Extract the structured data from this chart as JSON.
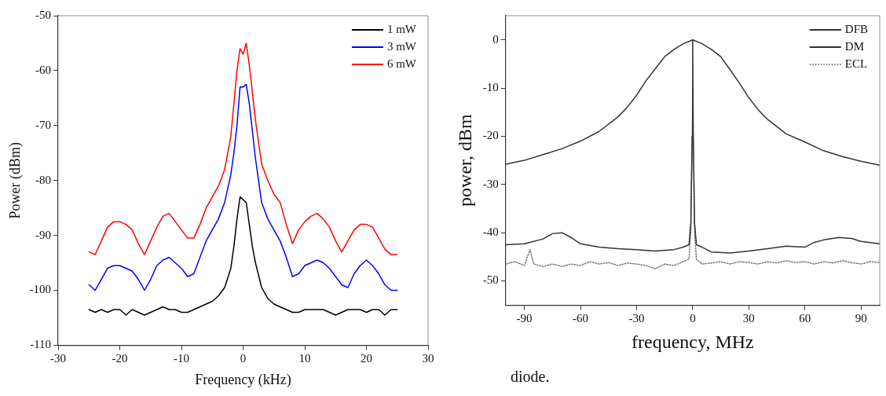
{
  "chart_data": [
    {
      "type": "line",
      "xlabel": "Frequency (kHz)",
      "ylabel": "Power (dBm)",
      "xlim": [
        -30,
        30
      ],
      "xticks": [
        -30,
        -20,
        -10,
        0,
        10,
        20,
        30
      ],
      "ylim": [
        -110,
        -50
      ],
      "yticks": [
        -110,
        -100,
        -90,
        -80,
        -70,
        -60,
        -50
      ],
      "grid": false,
      "legend": "top right",
      "marker": "none",
      "line_style": "solid",
      "series": [
        {
          "name": "1 mW",
          "color": "#000000",
          "x": [
            -25,
            -24,
            -23,
            -22,
            -21,
            -20,
            -19,
            -18,
            -17,
            -16,
            -15,
            -14,
            -13,
            -12,
            -11,
            -10,
            -9,
            -8,
            -7,
            -6,
            -5,
            -4,
            -3,
            -2,
            -1.5,
            -1,
            -0.5,
            0,
            0.5,
            1,
            1.5,
            2,
            3,
            4,
            5,
            6,
            7,
            8,
            9,
            10,
            11,
            12,
            13,
            14,
            15,
            16,
            17,
            18,
            19,
            20,
            21,
            22,
            23,
            24,
            25
          ],
          "values": [
            -103.5,
            -104,
            -103.5,
            -104,
            -103.5,
            -103.5,
            -104.5,
            -103.5,
            -104,
            -104.5,
            -104,
            -103.5,
            -103,
            -103.5,
            -103.5,
            -104,
            -104,
            -103.5,
            -103,
            -102.5,
            -102,
            -101,
            -99.5,
            -96,
            -92,
            -87,
            -83,
            -83.5,
            -84,
            -88,
            -92,
            -95,
            -99.5,
            -101.5,
            -102.5,
            -103,
            -103.5,
            -104,
            -104,
            -103.5,
            -103.5,
            -103.5,
            -103.5,
            -104,
            -104.5,
            -104,
            -103.5,
            -103.5,
            -103.5,
            -104,
            -103.5,
            -103.5,
            -104.5,
            -103.5,
            -103.5
          ]
        },
        {
          "name": "3 mW",
          "color": "#0000ff",
          "x": [
            -25,
            -24,
            -23,
            -22,
            -21,
            -20,
            -19,
            -18,
            -17,
            -16,
            -15,
            -14,
            -13,
            -12,
            -11,
            -10,
            -9,
            -8,
            -7,
            -6,
            -5,
            -4,
            -3,
            -2,
            -1.5,
            -1,
            -0.5,
            0,
            0.5,
            1,
            1.5,
            2,
            3,
            4,
            5,
            6,
            7,
            8,
            9,
            10,
            11,
            12,
            13,
            14,
            15,
            16,
            17,
            18,
            19,
            20,
            21,
            22,
            23,
            24,
            25
          ],
          "values": [
            -99,
            -100,
            -98,
            -96,
            -95.5,
            -95.5,
            -96,
            -96.5,
            -98,
            -100,
            -98,
            -95.5,
            -94.5,
            -94,
            -95,
            -96,
            -97.5,
            -97,
            -94,
            -91,
            -89,
            -87,
            -84,
            -79,
            -75,
            -70,
            -63,
            -63,
            -62.5,
            -66,
            -71,
            -76,
            -84,
            -87,
            -89,
            -91,
            -94,
            -97.5,
            -97,
            -95.5,
            -95,
            -94.5,
            -95,
            -96,
            -97.5,
            -99,
            -99.5,
            -97,
            -95.5,
            -94.5,
            -95.5,
            -97,
            -99,
            -100,
            -100
          ]
        },
        {
          "name": "6 mW",
          "color": "#ff0000",
          "x": [
            -25,
            -24,
            -23,
            -22,
            -21,
            -20,
            -19,
            -18,
            -17,
            -16,
            -15,
            -14,
            -13,
            -12,
            -11,
            -10,
            -9,
            -8,
            -7,
            -6,
            -5,
            -4,
            -3,
            -2,
            -1.5,
            -1,
            -0.5,
            0,
            0.5,
            1,
            1.5,
            2,
            3,
            4,
            5,
            6,
            7,
            8,
            9,
            10,
            11,
            12,
            13,
            14,
            15,
            16,
            17,
            18,
            19,
            20,
            21,
            22,
            23,
            24,
            25
          ],
          "values": [
            -93,
            -93.5,
            -91,
            -88.5,
            -87.5,
            -87.5,
            -88,
            -89,
            -91.5,
            -93.5,
            -91,
            -88.5,
            -86.5,
            -86,
            -87.5,
            -89,
            -90.5,
            -90.5,
            -88,
            -85,
            -83,
            -81,
            -78,
            -72,
            -66,
            -60,
            -56,
            -57,
            -55,
            -59,
            -64,
            -69,
            -77,
            -80,
            -82.5,
            -84,
            -88,
            -91.5,
            -89,
            -87.5,
            -86.5,
            -86,
            -87,
            -88.5,
            -91,
            -93,
            -91,
            -89,
            -88,
            -88,
            -88.5,
            -90.5,
            -92.5,
            -93.5,
            -93.5
          ]
        }
      ]
    },
    {
      "type": "line",
      "xlabel": "frequency, MHz",
      "ylabel": "power, dBm",
      "xlim": [
        -100,
        100
      ],
      "xticks": [
        -90,
        -60,
        -30,
        0,
        30,
        60,
        90
      ],
      "ylim": [
        -55,
        5
      ],
      "yticks": [
        -50,
        -40,
        -30,
        -20,
        -10,
        0
      ],
      "grid": false,
      "legend": "top right",
      "marker": "none",
      "annotations": [
        "diode."
      ],
      "series": [
        {
          "name": "DFB",
          "color": "#333333",
          "line_style": "solid",
          "x": [
            -100,
            -90,
            -80,
            -70,
            -60,
            -50,
            -40,
            -35,
            -30,
            -25,
            -20,
            -15,
            -10,
            -5,
            0,
            5,
            10,
            15,
            20,
            25,
            30,
            35,
            40,
            50,
            60,
            70,
            80,
            90,
            100
          ],
          "values": [
            -25.8,
            -25,
            -23.8,
            -22.6,
            -21,
            -19,
            -16,
            -14,
            -11.5,
            -8.5,
            -6,
            -3.5,
            -2,
            -0.8,
            0,
            -0.8,
            -2,
            -3.5,
            -6.2,
            -9,
            -12,
            -14.5,
            -16.5,
            -19.5,
            -21.2,
            -23,
            -24.2,
            -25.2,
            -26
          ]
        },
        {
          "name": "DM",
          "color": "#333333",
          "line_style": "solid",
          "x": [
            -100,
            -90,
            -80,
            -75,
            -70,
            -65,
            -60,
            -50,
            -40,
            -30,
            -20,
            -10,
            -5,
            -2,
            -1,
            -0.3,
            0,
            0.3,
            1,
            2,
            5,
            10,
            20,
            30,
            40,
            50,
            60,
            65,
            70,
            78,
            85,
            90,
            100
          ],
          "values": [
            -42.5,
            -42.3,
            -41.3,
            -40.2,
            -40,
            -41,
            -42.3,
            -43,
            -43.3,
            -43.5,
            -43.8,
            -43.5,
            -43,
            -42.5,
            -38,
            -20,
            0,
            -20,
            -38,
            -42.5,
            -43,
            -44,
            -44.2,
            -43.8,
            -43.3,
            -42.8,
            -43,
            -42,
            -41.5,
            -41,
            -41.2,
            -41.8,
            -42.3
          ]
        },
        {
          "name": "ECL",
          "color": "#777777",
          "line_style": "dotted",
          "x": [
            -100,
            -95,
            -90,
            -87,
            -85,
            -80,
            -75,
            -70,
            -65,
            -60,
            -55,
            -50,
            -45,
            -40,
            -35,
            -30,
            -25,
            -20,
            -15,
            -10,
            -5,
            -2,
            -1,
            -0.3,
            0,
            0.3,
            1,
            2,
            5,
            10,
            15,
            20,
            25,
            30,
            35,
            40,
            45,
            50,
            55,
            60,
            65,
            70,
            75,
            80,
            85,
            90,
            95,
            100
          ],
          "values": [
            -46.5,
            -46,
            -46.8,
            -43.5,
            -46.5,
            -47,
            -46.5,
            -47,
            -46.5,
            -46.8,
            -46,
            -46.5,
            -46.2,
            -46.8,
            -46.3,
            -46.5,
            -46.8,
            -47.5,
            -46.5,
            -46.8,
            -46,
            -45.5,
            -40,
            -20,
            -10,
            -20,
            -40,
            -45.5,
            -46.5,
            -46.3,
            -46,
            -46.5,
            -46,
            -46.2,
            -46.5,
            -46,
            -46.3,
            -45.8,
            -46.2,
            -46,
            -46.5,
            -46,
            -46.3,
            -45.8,
            -46.2,
            -46.5,
            -46,
            -46.2
          ]
        }
      ]
    }
  ]
}
